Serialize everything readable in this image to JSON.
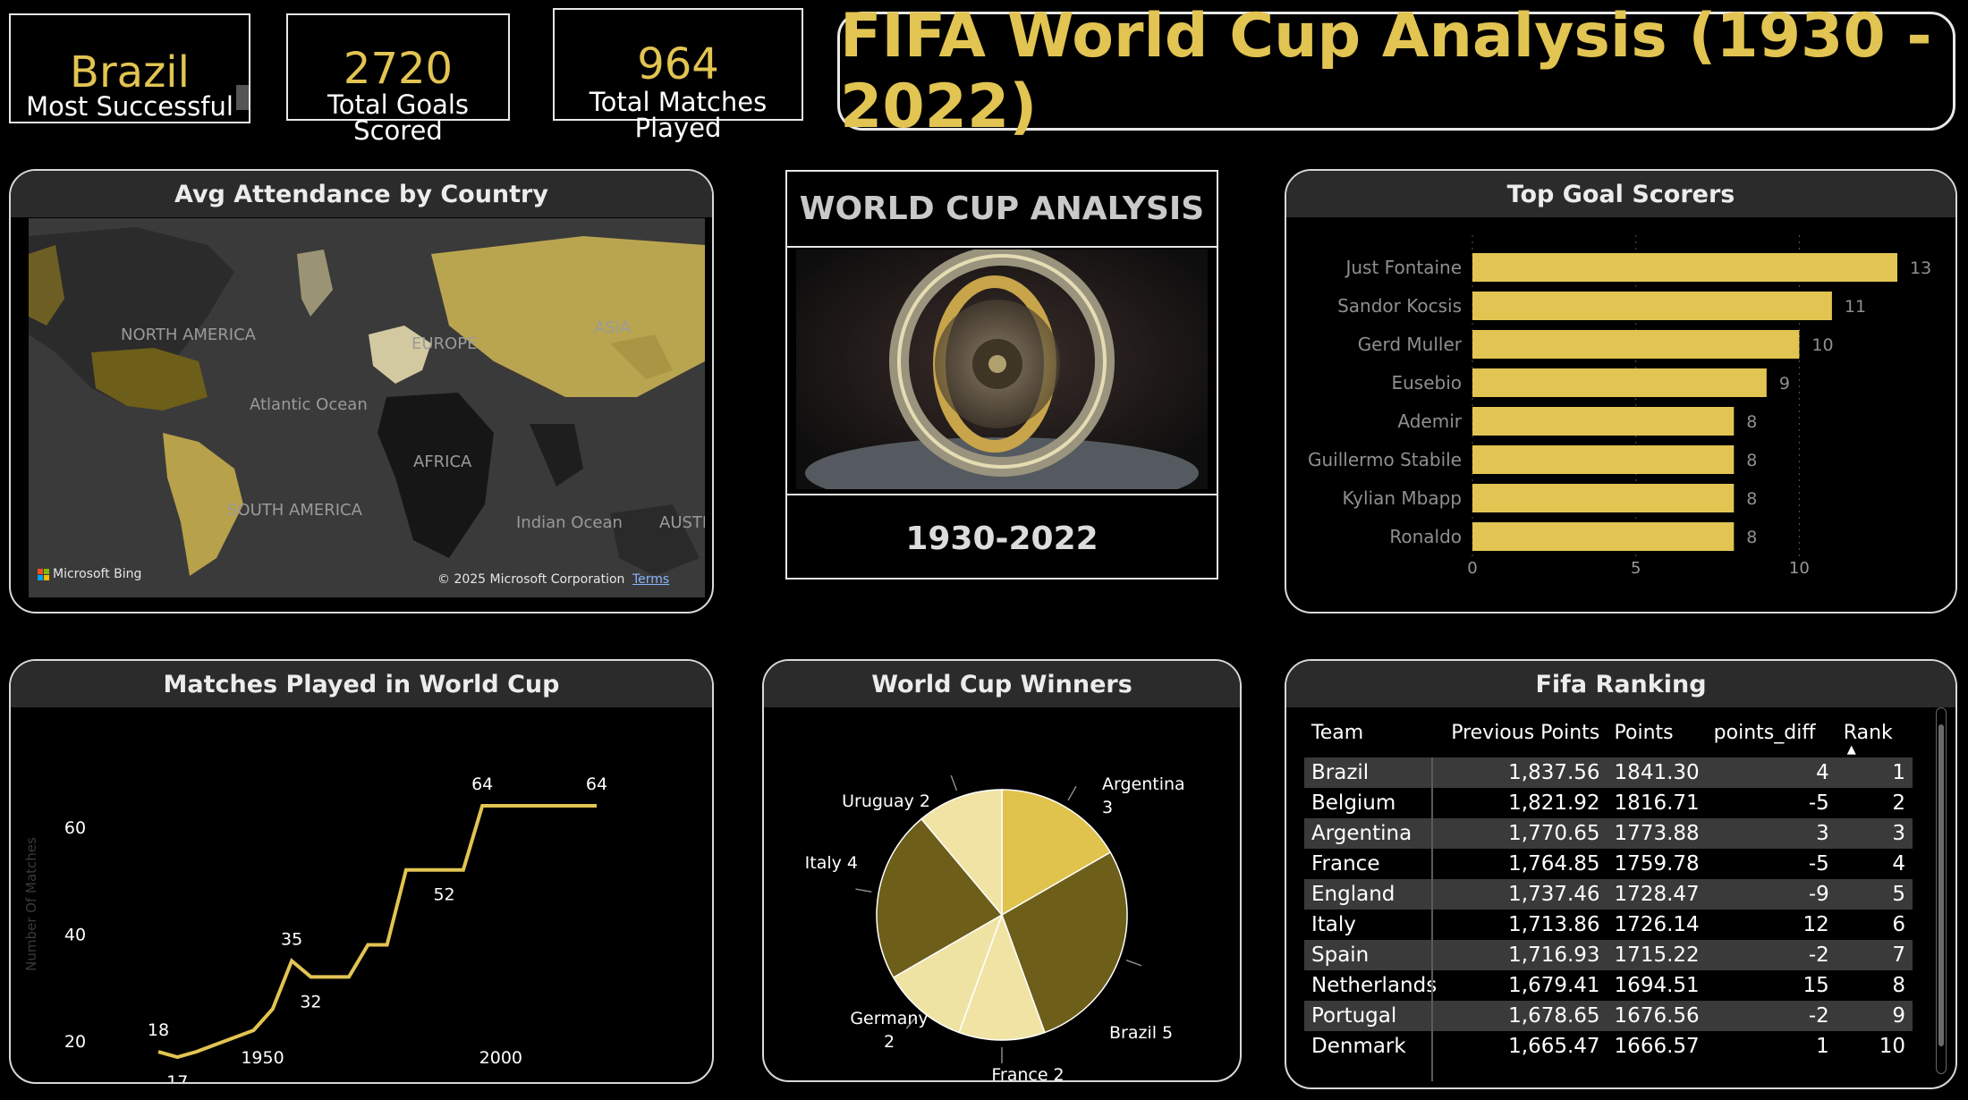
{
  "kpis": [
    {
      "value": "Brazil",
      "label": "Most Successful"
    },
    {
      "value": "2720",
      "label": "Total Goals Scored"
    },
    {
      "value": "964",
      "label": "Total Matches Played"
    }
  ],
  "title": "FIFA World Cup Analysis (1930 - 2022)",
  "colors": {
    "gold": "#e2c452",
    "header_bg": "#2b2b2b",
    "row_alt": "#3a3a3a"
  },
  "map_card": {
    "title": "Avg Attendance by Country",
    "labels": {
      "north_america": "NORTH AMERICA",
      "europe": "EUROPE",
      "asia": "ASIA",
      "atlantic": "Atlantic Ocean",
      "africa": "AFRICA",
      "south_america": "SOUTH AMERICA",
      "indian": "Indian Ocean",
      "australia": "AUSTR"
    },
    "bing": "Microsoft Bing",
    "copyright": "© 2025 Microsoft Corporation",
    "terms": "Terms"
  },
  "wc_panel": {
    "heading": "WORLD CUP ANALYSIS",
    "years": "1930-2022"
  },
  "scorers_card": {
    "title": "Top Goal Scorers"
  },
  "matches_card": {
    "title": "Matches Played in World Cup"
  },
  "winners_card": {
    "title": "World Cup Winners"
  },
  "ranking_card": {
    "title": "Fifa Ranking",
    "columns": [
      "Team",
      "Previous Points",
      "Points",
      "points_diff",
      "Rank"
    ],
    "rows": [
      [
        "Brazil",
        "1,837.56",
        "1841.30",
        "4",
        "1"
      ],
      [
        "Belgium",
        "1,821.92",
        "1816.71",
        "-5",
        "2"
      ],
      [
        "Argentina",
        "1,770.65",
        "1773.88",
        "3",
        "3"
      ],
      [
        "France",
        "1,764.85",
        "1759.78",
        "-5",
        "4"
      ],
      [
        "England",
        "1,737.46",
        "1728.47",
        "-9",
        "5"
      ],
      [
        "Italy",
        "1,713.86",
        "1726.14",
        "12",
        "6"
      ],
      [
        "Spain",
        "1,716.93",
        "1715.22",
        "-2",
        "7"
      ],
      [
        "Netherlands",
        "1,679.41",
        "1694.51",
        "15",
        "8"
      ],
      [
        "Portugal",
        "1,678.65",
        "1676.56",
        "-2",
        "9"
      ],
      [
        "Denmark",
        "1,665.47",
        "1666.57",
        "1",
        "10"
      ]
    ]
  },
  "chart_data": [
    {
      "type": "bar",
      "title": "Top Goal Scorers",
      "orientation": "horizontal",
      "categories": [
        "Just Fontaine",
        "Sandor Kocsis",
        "Gerd Muller",
        "Eusebio",
        "Ademir",
        "Guillermo Stabile",
        "Kylian Mbapp",
        "Ronaldo"
      ],
      "values": [
        13,
        11,
        10,
        9,
        8,
        8,
        8,
        8
      ],
      "xlim": [
        0,
        13
      ],
      "xticks": [
        0,
        5,
        10
      ],
      "grid": true
    },
    {
      "type": "line",
      "title": "Matches Played in World Cup",
      "ylabel": "Number Of Matches",
      "x": [
        1930,
        1934,
        1938,
        1950,
        1954,
        1958,
        1962,
        1966,
        1970,
        1974,
        1978,
        1982,
        1986,
        1990,
        1994,
        1998,
        2002,
        2006,
        2010,
        2014,
        2018,
        2022
      ],
      "values": [
        18,
        17,
        18,
        22,
        26,
        35,
        32,
        32,
        32,
        38,
        38,
        52,
        52,
        52,
        52,
        64,
        64,
        64,
        64,
        64,
        64,
        64
      ],
      "point_labels": [
        {
          "x": 1930,
          "y": 18,
          "text": "18"
        },
        {
          "x": 1934,
          "y": 17,
          "text": "17"
        },
        {
          "x": 1958,
          "y": 35,
          "text": "35"
        },
        {
          "x": 1962,
          "y": 32,
          "text": "32"
        },
        {
          "x": 1990,
          "y": 52,
          "text": "52"
        },
        {
          "x": 1998,
          "y": 64,
          "text": "64"
        },
        {
          "x": 2022,
          "y": 64,
          "text": "64"
        }
      ],
      "xticks": [
        1950,
        2000
      ],
      "yticks": [
        20,
        40,
        60
      ],
      "ylim": [
        10,
        70
      ],
      "xlim": [
        1926,
        2026
      ]
    },
    {
      "type": "pie",
      "title": "World Cup Winners",
      "slices": [
        {
          "name": "Argentina",
          "value": 3,
          "label": "Argentina 3",
          "color": "#dfc34d"
        },
        {
          "name": "Brazil",
          "value": 5,
          "label": "Brazil 5",
          "color": "#6d5e1a"
        },
        {
          "name": "France",
          "value": 2,
          "label": "France 2",
          "color": "#f0e3a4"
        },
        {
          "name": "Germany",
          "value": 2,
          "label": "Germany 2",
          "color": "#efe3a4"
        },
        {
          "name": "Italy",
          "value": 4,
          "label": "Italy 4",
          "color": "#6d5e1a"
        },
        {
          "name": "Uruguay",
          "value": 2,
          "label": "Uruguay 2",
          "color": "#f0e3a4"
        }
      ]
    }
  ]
}
